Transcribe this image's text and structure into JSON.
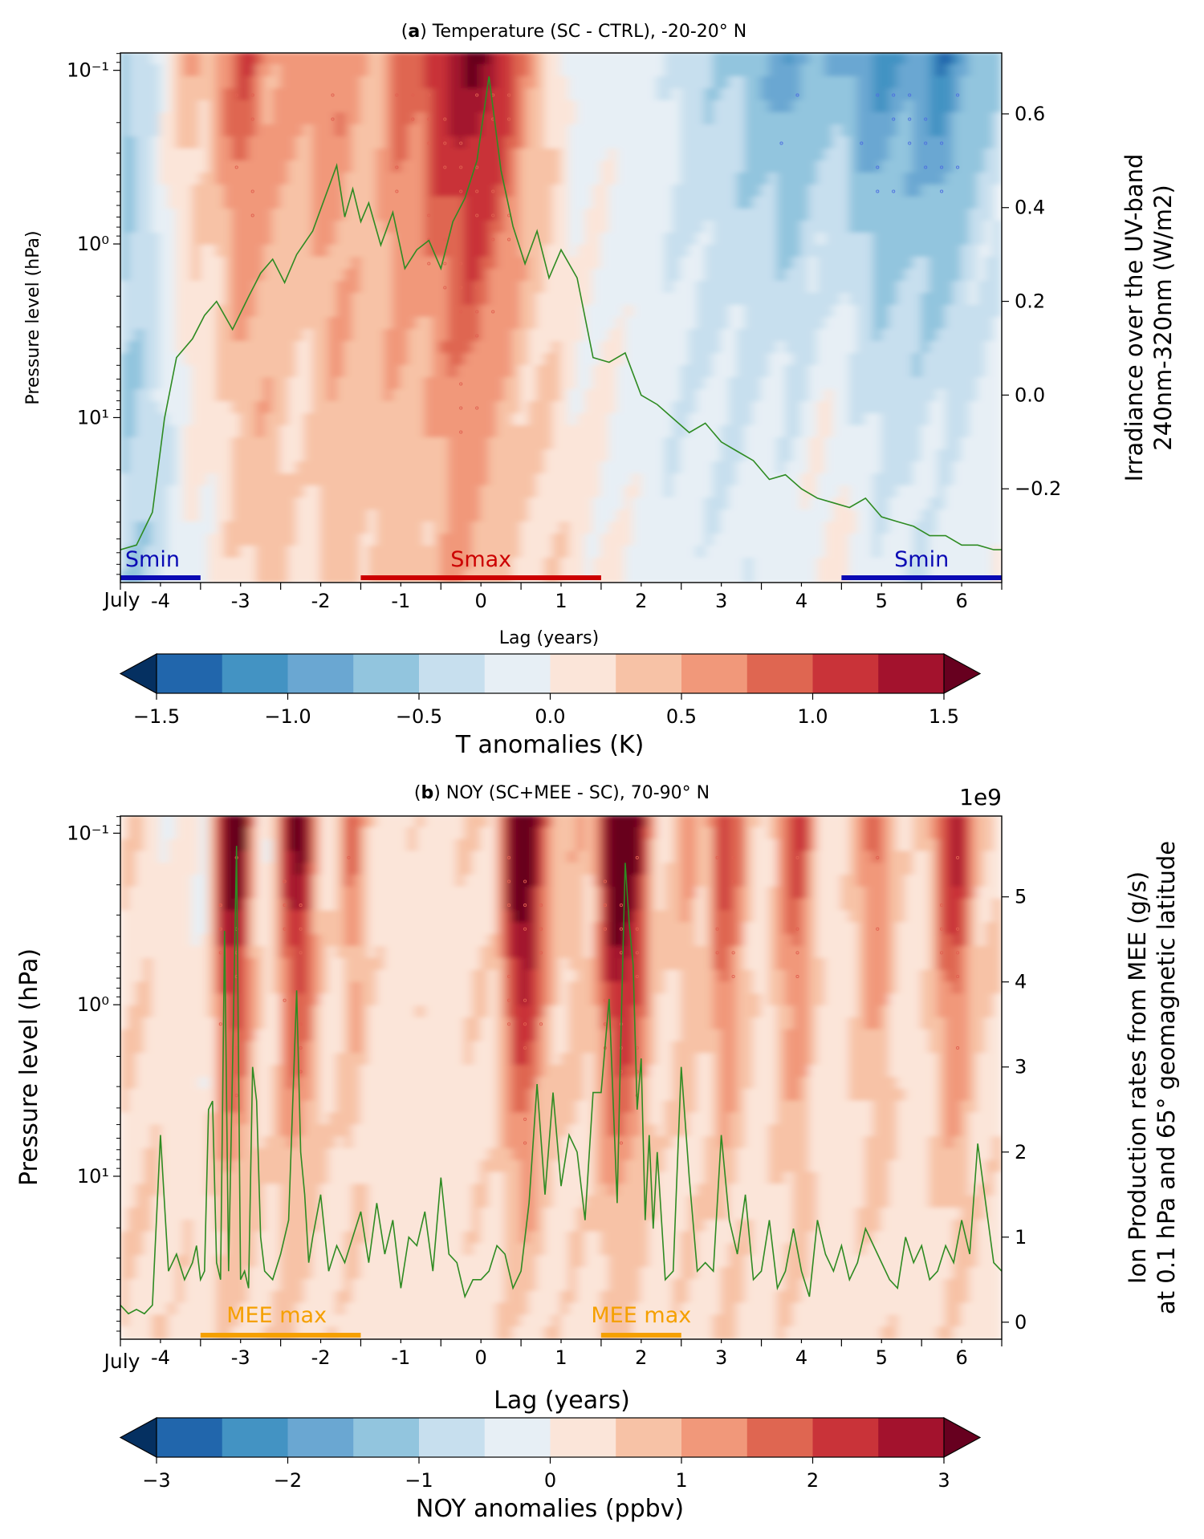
{
  "colors": {
    "cmap": [
      "#053061",
      "#2166ac",
      "#4393c3",
      "#6aa7d2",
      "#92c5de",
      "#c7dfee",
      "#e7eff5",
      "#fbe5d9",
      "#f7c2a6",
      "#f1987a",
      "#df6651",
      "#c93339",
      "#a3122d",
      "#67001f"
    ],
    "line": "#2e8b22",
    "smin": "#0a0ab4",
    "smax": "#cc0000",
    "mee": "#f5a000"
  },
  "chart_data": [
    {
      "type": "heatmap",
      "panel_label": "a",
      "title": "Temperature (SC - CTRL), -20-20° N",
      "xlabel": "Lag (years)",
      "ylabel": "Pressure level (hPa)",
      "y2label_line1": "Irradiance over the UV-band",
      "y2label_line2": "240nm-320nm (W/m2)",
      "x_start_label": "July",
      "xlim": [
        -4.5,
        6.5
      ],
      "x_ticks": [
        -4,
        -3,
        -2,
        -1,
        0,
        1,
        2,
        3,
        4,
        5,
        6
      ],
      "x_tick_labels": [
        "-4",
        "-3",
        "-2",
        "-1",
        "0",
        "1",
        "2",
        "3",
        "4",
        "5",
        "6"
      ],
      "ylim_log": [
        -1.1,
        1.95
      ],
      "y_tick_values_log": [
        -1,
        0,
        1
      ],
      "y_tick_labels": [
        "10⁻¹",
        "10⁰",
        "10¹"
      ],
      "y2lim": [
        -0.4,
        0.73
      ],
      "y2_ticks": [
        -0.2,
        0.0,
        0.2,
        0.4,
        0.6
      ],
      "y2_tick_labels": [
        "−0.2",
        "0.0",
        "0.2",
        "0.4",
        "0.6"
      ],
      "y2_offset_label": "",
      "colorbar": {
        "label": "T anomalies (K)",
        "levels": [
          -1.5,
          -1.25,
          -1.0,
          -0.75,
          -0.5,
          -0.25,
          0.0,
          0.25,
          0.5,
          0.75,
          1.0,
          1.25,
          1.5
        ],
        "ticks": [
          -1.5,
          -1.0,
          -0.5,
          0.0,
          0.5,
          1.0,
          1.5
        ],
        "tick_labels": [
          "−1.5",
          "−1.0",
          "−0.5",
          "0.0",
          "0.5",
          "1.0",
          "1.5"
        ]
      },
      "column_anomaly_profile": {
        "x": [
          -4.5,
          -4.3,
          -4.1,
          -3.9,
          -3.6,
          -3.4,
          -3.1,
          -2.9,
          -2.7,
          -2.5,
          -2.2,
          -2.0,
          -1.8,
          -1.6,
          -1.4,
          -1.2,
          -1.0,
          -0.8,
          -0.6,
          -0.4,
          -0.2,
          0.0,
          0.2,
          0.4,
          0.6,
          0.8,
          1.0,
          1.2,
          1.5,
          1.8,
          2.1,
          2.4,
          2.7,
          3.0,
          3.3,
          3.6,
          3.9,
          4.2,
          4.5,
          4.7,
          5.0,
          5.2,
          5.4,
          5.6,
          5.8,
          6.0,
          6.2,
          6.5
        ],
        "top": [
          -0.7,
          -0.4,
          -0.3,
          0.2,
          0.5,
          0.35,
          0.9,
          1.1,
          0.6,
          0.6,
          0.65,
          0.7,
          0.8,
          0.6,
          0.4,
          0.55,
          1.0,
          0.75,
          1.3,
          1.3,
          1.5,
          1.6,
          1.4,
          1.0,
          0.6,
          0.3,
          0.1,
          -0.2,
          -0.05,
          -0.15,
          -0.1,
          -0.25,
          -0.5,
          -0.45,
          -0.6,
          -0.8,
          -1.0,
          -0.7,
          -0.75,
          -0.9,
          -1.1,
          -1.0,
          -0.9,
          -1.1,
          -1.3,
          -0.9,
          -0.7,
          -0.5
        ],
        "bottom": [
          -0.5,
          -0.5,
          -0.4,
          -0.3,
          0.0,
          0.0,
          0.2,
          0.3,
          0.4,
          0.3,
          0.1,
          0.3,
          0.4,
          0.35,
          0.3,
          0.4,
          0.4,
          0.35,
          0.3,
          0.5,
          0.6,
          0.5,
          0.3,
          0.25,
          0.2,
          0.25,
          0.2,
          0.1,
          0.05,
          -0.05,
          -0.1,
          -0.2,
          -0.15,
          -0.2,
          -0.2,
          -0.1,
          -0.1,
          0.05,
          0.1,
          -0.1,
          -0.2,
          -0.15,
          -0.3,
          -0.15,
          -0.1,
          -0.1,
          -0.05,
          0.0
        ]
      },
      "series": [
        {
          "name": "Irradiance over the UV-band 240nm-320nm",
          "x": [
            -4.5,
            -4.3,
            -4.1,
            -3.95,
            -3.8,
            -3.6,
            -3.45,
            -3.3,
            -3.1,
            -2.9,
            -2.75,
            -2.6,
            -2.45,
            -2.3,
            -2.1,
            -1.95,
            -1.8,
            -1.7,
            -1.6,
            -1.5,
            -1.4,
            -1.25,
            -1.1,
            -0.95,
            -0.8,
            -0.65,
            -0.5,
            -0.35,
            -0.2,
            -0.05,
            0.1,
            0.25,
            0.4,
            0.55,
            0.7,
            0.85,
            1.0,
            1.2,
            1.4,
            1.6,
            1.8,
            2.0,
            2.2,
            2.4,
            2.6,
            2.8,
            3.0,
            3.2,
            3.4,
            3.6,
            3.8,
            4.0,
            4.2,
            4.4,
            4.6,
            4.8,
            5.0,
            5.2,
            5.4,
            5.6,
            5.8,
            6.0,
            6.2,
            6.4,
            6.5
          ],
          "y": [
            -0.33,
            -0.32,
            -0.25,
            -0.05,
            0.08,
            0.12,
            0.17,
            0.2,
            0.14,
            0.21,
            0.26,
            0.29,
            0.24,
            0.3,
            0.35,
            0.42,
            0.49,
            0.38,
            0.44,
            0.37,
            0.41,
            0.32,
            0.39,
            0.27,
            0.31,
            0.33,
            0.27,
            0.37,
            0.42,
            0.5,
            0.68,
            0.48,
            0.36,
            0.28,
            0.35,
            0.25,
            0.31,
            0.25,
            0.08,
            0.07,
            0.09,
            0.0,
            -0.02,
            -0.05,
            -0.08,
            -0.06,
            -0.1,
            -0.12,
            -0.14,
            -0.18,
            -0.17,
            -0.2,
            -0.22,
            -0.23,
            -0.24,
            -0.22,
            -0.26,
            -0.27,
            -0.28,
            -0.3,
            -0.3,
            -0.32,
            -0.32,
            -0.33,
            -0.33
          ]
        }
      ],
      "bands": [
        {
          "label": "Smin",
          "x0": -4.5,
          "x1": -3.5,
          "color_key": "smin",
          "label_x": -4.1
        },
        {
          "label": "Smax",
          "x0": -1.5,
          "x1": 1.5,
          "color_key": "smax",
          "label_x": 0.0
        },
        {
          "label": "Smin",
          "x0": 4.5,
          "x1": 6.5,
          "color_key": "smin",
          "label_x": 5.5
        }
      ]
    },
    {
      "type": "heatmap",
      "panel_label": "b",
      "title": "NOY (SC+MEE - SC), 70-90° N",
      "xlabel": "Lag (years)",
      "ylabel": "Pressure level (hPa)",
      "y2label_line1": "Ion Production rates from MEE (g/s)",
      "y2label_line2": "at 0.1 hPa and 65° geomagnetic latitude",
      "x_start_label": "July",
      "xlim": [
        -4.5,
        6.5
      ],
      "x_ticks": [
        -4,
        -3,
        -2,
        -1,
        0,
        1,
        2,
        3,
        4,
        5,
        6
      ],
      "x_tick_labels": [
        "-4",
        "-3",
        "-2",
        "-1",
        "0",
        "1",
        "2",
        "3",
        "4",
        "5",
        "6"
      ],
      "ylim_log": [
        -1.1,
        1.95
      ],
      "y_tick_values_log": [
        -1,
        0,
        1
      ],
      "y_tick_labels": [
        "10⁻¹",
        "10⁰",
        "10¹"
      ],
      "y2lim": [
        -0.2,
        5.95
      ],
      "y2_ticks": [
        0,
        1,
        2,
        3,
        4,
        5
      ],
      "y2_tick_labels": [
        "0",
        "1",
        "2",
        "3",
        "4",
        "5"
      ],
      "y2_offset_label": "1e9",
      "colorbar": {
        "label": "NOY anomalies (ppbv)",
        "levels": [
          -3.0,
          -2.5,
          -2.0,
          -1.5,
          -1.0,
          -0.5,
          0.0,
          0.5,
          1.0,
          1.5,
          2.0,
          2.5,
          3.0
        ],
        "ticks": [
          -3,
          -2,
          -1,
          0,
          1,
          2,
          3
        ],
        "tick_labels": [
          "−3",
          "−2",
          "−1",
          "0",
          "1",
          "2",
          "3"
        ]
      },
      "column_anomaly_profile": {
        "x": [
          -4.5,
          -4.3,
          -4.1,
          -3.9,
          -3.7,
          -3.4,
          -3.2,
          -3.0,
          -2.8,
          -2.6,
          -2.4,
          -2.2,
          -2.0,
          -1.8,
          -1.6,
          -1.4,
          -1.2,
          -1.0,
          -0.8,
          -0.6,
          -0.4,
          -0.2,
          0.0,
          0.2,
          0.4,
          0.6,
          0.8,
          1.0,
          1.2,
          1.4,
          1.6,
          1.8,
          2.0,
          2.2,
          2.4,
          2.6,
          2.8,
          3.0,
          3.2,
          3.4,
          3.6,
          3.8,
          4.0,
          4.2,
          4.4,
          4.6,
          4.8,
          5.0,
          5.2,
          5.4,
          5.6,
          5.8,
          6.0,
          6.2,
          6.5
        ],
        "top": [
          0.4,
          0.5,
          0.3,
          0.0,
          0.2,
          -0.2,
          3.5,
          4.0,
          0.5,
          0.0,
          3.0,
          3.5,
          0.6,
          0.3,
          2.0,
          0.5,
          0.3,
          0.2,
          0.4,
          0.2,
          0.3,
          0.4,
          0.5,
          0.3,
          4.0,
          4.5,
          2.0,
          0.6,
          1.0,
          0.5,
          4.0,
          4.5,
          3.0,
          0.5,
          0.6,
          1.5,
          0.5,
          2.5,
          2.0,
          0.4,
          0.3,
          1.8,
          2.5,
          0.5,
          0.3,
          0.4,
          1.5,
          2.0,
          0.5,
          0.3,
          0.6,
          2.5,
          3.0,
          0.8,
          0.5
        ],
        "bottom": [
          0.5,
          0.4,
          0.5,
          0.3,
          0.4,
          0.3,
          0.6,
          0.5,
          0.5,
          0.4,
          0.6,
          0.5,
          0.4,
          0.3,
          0.4,
          0.3,
          0.3,
          0.2,
          0.3,
          0.3,
          0.2,
          0.3,
          0.4,
          0.3,
          0.5,
          0.6,
          0.4,
          0.3,
          0.4,
          0.3,
          0.6,
          0.6,
          0.5,
          0.3,
          0.3,
          0.4,
          0.3,
          0.5,
          0.4,
          0.3,
          0.3,
          0.4,
          0.4,
          0.3,
          0.2,
          0.3,
          0.3,
          0.4,
          0.3,
          0.2,
          0.3,
          0.4,
          0.4,
          0.3,
          0.3
        ]
      },
      "series": [
        {
          "name": "Ion Production rates from MEE",
          "x": [
            -4.5,
            -4.4,
            -4.3,
            -4.2,
            -4.1,
            -4.0,
            -3.9,
            -3.8,
            -3.7,
            -3.6,
            -3.55,
            -3.5,
            -3.45,
            -3.4,
            -3.35,
            -3.3,
            -3.25,
            -3.2,
            -3.15,
            -3.1,
            -3.05,
            -3.0,
            -2.95,
            -2.9,
            -2.85,
            -2.8,
            -2.75,
            -2.7,
            -2.6,
            -2.5,
            -2.4,
            -2.3,
            -2.25,
            -2.2,
            -2.15,
            -2.1,
            -2.0,
            -1.9,
            -1.8,
            -1.7,
            -1.6,
            -1.5,
            -1.4,
            -1.3,
            -1.2,
            -1.1,
            -1.0,
            -0.9,
            -0.8,
            -0.7,
            -0.6,
            -0.5,
            -0.4,
            -0.3,
            -0.2,
            -0.1,
            0.0,
            0.1,
            0.2,
            0.3,
            0.4,
            0.5,
            0.6,
            0.7,
            0.8,
            0.9,
            1.0,
            1.1,
            1.2,
            1.3,
            1.4,
            1.5,
            1.6,
            1.7,
            1.75,
            1.8,
            1.85,
            1.9,
            1.95,
            2.0,
            2.05,
            2.1,
            2.15,
            2.2,
            2.3,
            2.4,
            2.5,
            2.6,
            2.7,
            2.8,
            2.9,
            3.0,
            3.1,
            3.2,
            3.3,
            3.4,
            3.5,
            3.6,
            3.7,
            3.8,
            3.9,
            4.0,
            4.1,
            4.2,
            4.3,
            4.4,
            4.5,
            4.6,
            4.7,
            4.8,
            4.9,
            5.0,
            5.1,
            5.2,
            5.3,
            5.4,
            5.5,
            5.6,
            5.7,
            5.8,
            5.9,
            6.0,
            6.1,
            6.2,
            6.3,
            6.4,
            6.5
          ],
          "y": [
            0.2,
            0.1,
            0.15,
            0.1,
            0.2,
            2.2,
            0.6,
            0.8,
            0.5,
            0.7,
            0.9,
            0.5,
            0.6,
            2.5,
            2.6,
            0.7,
            0.5,
            4.6,
            0.6,
            3.0,
            5.6,
            0.5,
            0.6,
            0.4,
            3.0,
            2.6,
            1.0,
            0.6,
            0.5,
            0.8,
            1.2,
            3.9,
            2.0,
            1.5,
            0.7,
            1.0,
            1.5,
            0.6,
            0.9,
            0.7,
            1.0,
            1.3,
            0.7,
            1.4,
            0.8,
            1.2,
            0.4,
            1.0,
            0.9,
            1.3,
            0.6,
            1.7,
            0.8,
            0.7,
            0.3,
            0.5,
            0.5,
            0.6,
            0.9,
            0.8,
            0.4,
            0.6,
            1.4,
            2.8,
            1.5,
            2.7,
            1.6,
            2.2,
            2.0,
            1.2,
            2.7,
            2.7,
            3.8,
            1.4,
            3.5,
            5.4,
            4.7,
            4.2,
            2.5,
            3.1,
            1.2,
            2.2,
            1.1,
            2.0,
            0.5,
            0.6,
            3.0,
            1.7,
            0.6,
            0.7,
            0.6,
            2.2,
            1.2,
            0.8,
            1.5,
            0.5,
            0.6,
            1.2,
            0.4,
            0.6,
            1.1,
            0.6,
            0.3,
            1.2,
            0.8,
            0.6,
            0.9,
            0.5,
            0.7,
            1.1,
            0.9,
            0.7,
            0.5,
            0.4,
            1.0,
            0.7,
            0.9,
            0.5,
            0.6,
            0.9,
            0.7,
            1.2,
            0.8,
            2.1,
            1.4,
            0.7,
            0.6
          ]
        }
      ],
      "bands": [
        {
          "label": "MEE max",
          "x0": -3.5,
          "x1": -1.5,
          "color_key": "mee",
          "label_x": -2.55
        },
        {
          "label": "MEE max",
          "x0": 1.5,
          "x1": 2.5,
          "color_key": "mee",
          "label_x": 2.0
        }
      ]
    }
  ]
}
